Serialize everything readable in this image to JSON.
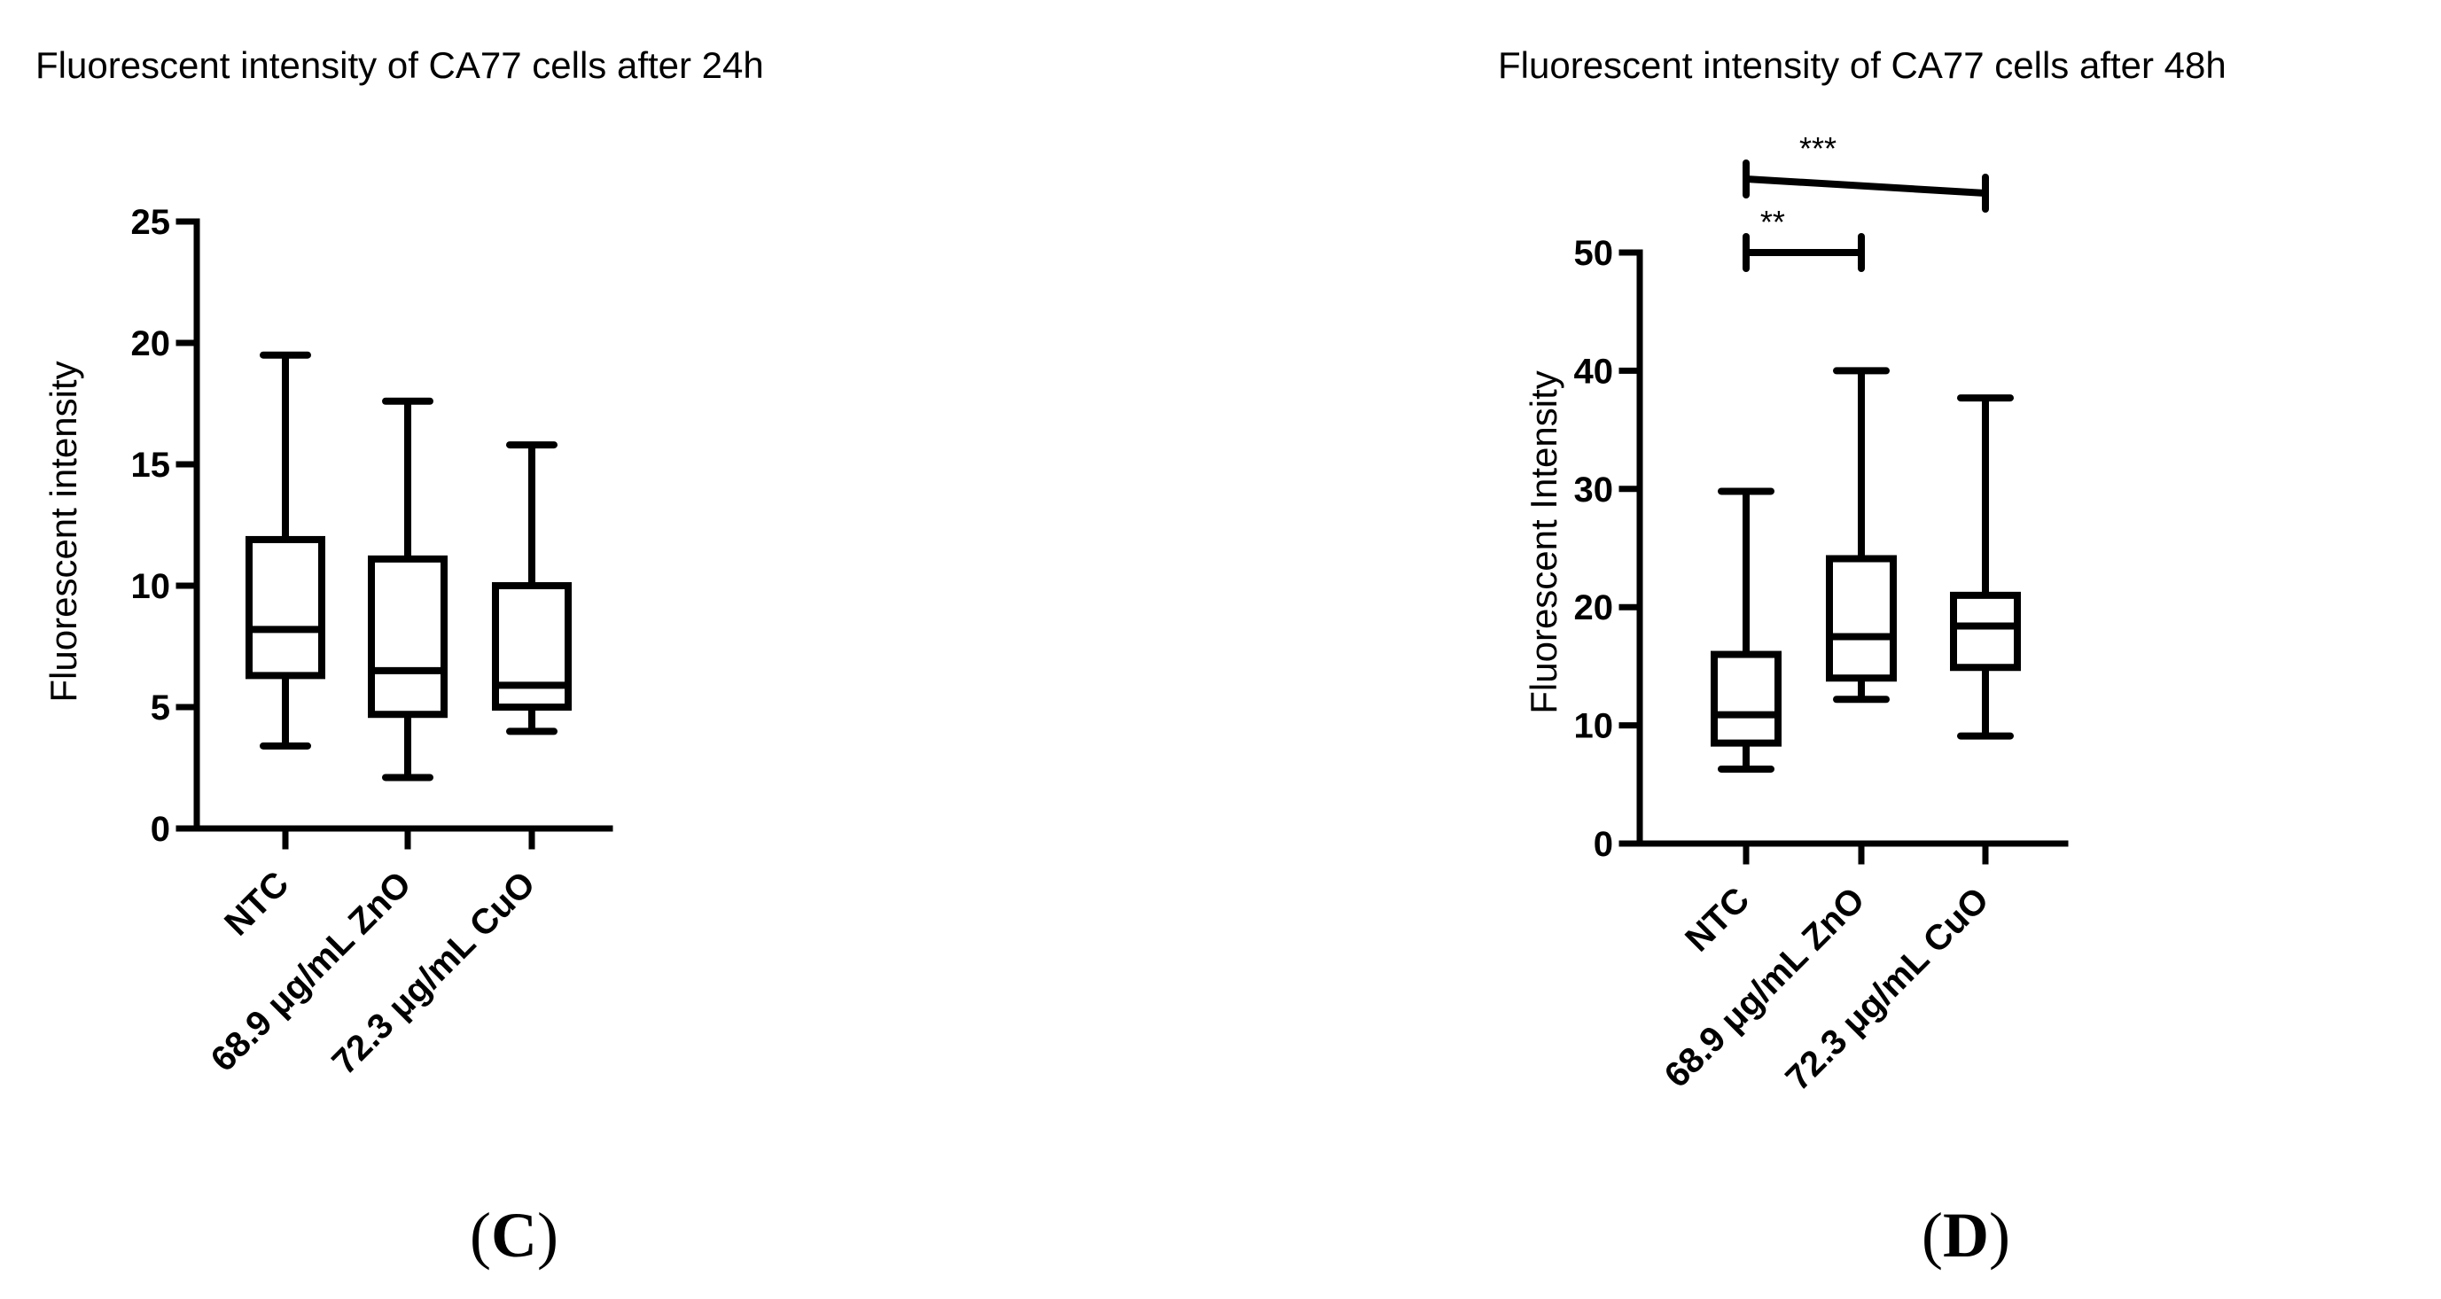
{
  "chart_data": [
    {
      "type": "box",
      "panel": "C",
      "title": "Fluorescent intensity of CA77 cells after 24h",
      "xlabel": "",
      "ylabel": "Fluorescent intensity",
      "ylim": [
        0,
        25
      ],
      "yticks": [
        0,
        5,
        10,
        15,
        20,
        25
      ],
      "ytick_labels": [
        "0",
        "5",
        "10",
        "15",
        "20",
        "25"
      ],
      "grid": false,
      "categories": [
        "NTC",
        "68.9 μg/mL ZnO",
        "72.3 μg/mL CuO"
      ],
      "boxes": [
        {
          "min": 3.4,
          "q1": 6.3,
          "median": 8.2,
          "q3": 11.9,
          "max": 19.5
        },
        {
          "min": 2.1,
          "q1": 4.7,
          "median": 6.5,
          "q3": 11.1,
          "max": 17.6
        },
        {
          "min": 4.0,
          "q1": 5.0,
          "median": 5.9,
          "q3": 10.0,
          "max": 15.8
        }
      ],
      "significance": []
    },
    {
      "type": "box",
      "panel": "D",
      "title": "Fluorescent intensity of CA77 cells after 48h",
      "xlabel": "",
      "ylabel": "Fluorescent Intensity",
      "ylim": [
        0,
        50
      ],
      "yticks": [
        0,
        10,
        20,
        30,
        40,
        50
      ],
      "ytick_labels": [
        "0",
        "10",
        "20",
        "30",
        "40",
        "50"
      ],
      "grid": false,
      "categories": [
        "NTC",
        "68.9 μg/mL ZnO",
        "72.3 μg/mL CuO"
      ],
      "boxes": [
        {
          "min": 6.3,
          "q1": 8.5,
          "median": 10.9,
          "q3": 16.0,
          "max": 29.8
        },
        {
          "min": 12.2,
          "q1": 14.0,
          "median": 17.5,
          "q3": 24.1,
          "max": 40.0
        },
        {
          "min": 9.1,
          "q1": 14.9,
          "median": 18.4,
          "q3": 21.0,
          "max": 37.7
        }
      ],
      "significance": [
        {
          "from": 0,
          "to": 1,
          "label": "**",
          "level": 1
        },
        {
          "from": 0,
          "to": 2,
          "label": "***",
          "level": 2
        }
      ]
    }
  ],
  "panel_labels": {
    "c_open": "(",
    "c_letter": "C",
    "c_close": ")",
    "d_open": "(",
    "d_letter": "D",
    "d_close": ")"
  }
}
